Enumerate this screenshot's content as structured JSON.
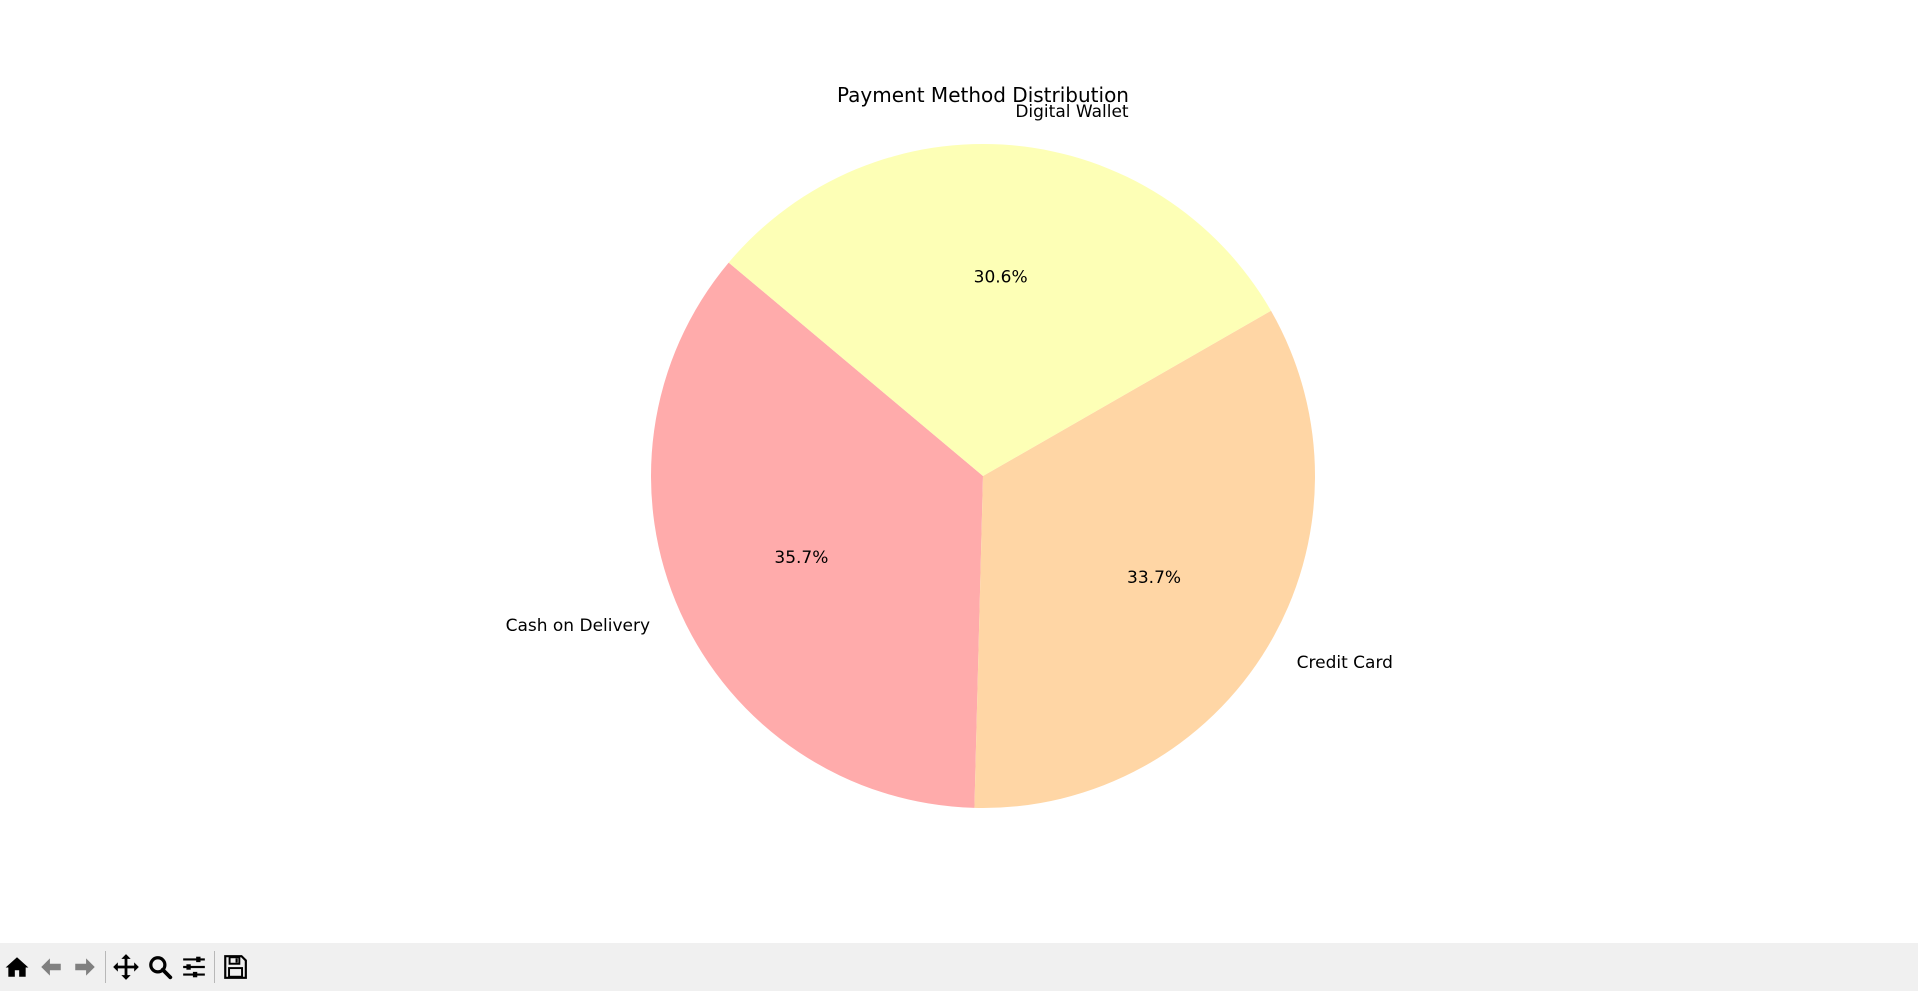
{
  "chart_data": {
    "type": "pie",
    "title": "Payment Method Distribution",
    "categories": [
      "Cash on Delivery",
      "Credit Card",
      "Digital Wallet"
    ],
    "values": [
      35.7,
      33.7,
      30.6
    ],
    "value_labels": [
      "35.7%",
      "33.7%",
      "30.6%"
    ],
    "colors": [
      "#ffabab",
      "#ffd6a5",
      "#fdffb6"
    ],
    "start_angle": 140,
    "counterclock": true,
    "legend": "none"
  },
  "toolbar": {
    "buttons": [
      {
        "name": "home-icon",
        "label": "Home"
      },
      {
        "name": "back-icon",
        "label": "Back"
      },
      {
        "name": "forward-icon",
        "label": "Forward"
      },
      {
        "name": "pan-icon",
        "label": "Pan"
      },
      {
        "name": "zoom-icon",
        "label": "Zoom"
      },
      {
        "name": "configure-subplots-icon",
        "label": "Configure subplots"
      },
      {
        "name": "save-icon",
        "label": "Save"
      }
    ]
  }
}
